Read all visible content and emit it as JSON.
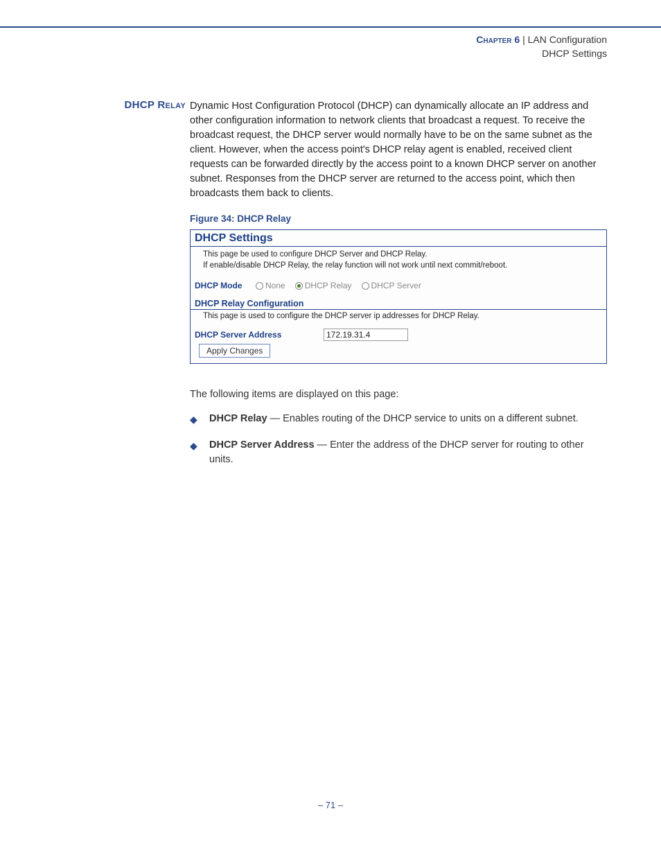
{
  "header": {
    "chapter_label": "Chapter 6",
    "separator": "|",
    "chapter_title": "LAN Configuration",
    "subtitle": "DHCP Settings"
  },
  "section": {
    "label": "DHCP Relay",
    "body": "Dynamic Host Configuration Protocol (DHCP) can dynamically allocate an IP address and other configuration information to network clients that broadcast a request. To receive the broadcast request, the DHCP server would normally have to be on the same subnet as the client. However, when the access point's DHCP relay agent is enabled, received client requests can be forwarded directly by the access point to a known DHCP server on another subnet. Responses from the DHCP server are returned to the access point, which then broadcasts them back to clients."
  },
  "figure": {
    "caption": "Figure 34:  DHCP Relay",
    "panel": {
      "title": "DHCP Settings",
      "desc_line1": "This page be used to configure DHCP Server and DHCP Relay.",
      "desc_line2": "If enable/disable DHCP Relay, the relay function will not work until next commit/reboot.",
      "mode_label": "DHCP Mode",
      "mode_options": {
        "none": "None",
        "relay": "DHCP Relay",
        "server": "DHCP Server",
        "selected": "relay"
      },
      "sub_heading": "DHCP Relay Configuration",
      "sub_desc": "This page is used to configure the DHCP server ip addresses for DHCP Relay.",
      "address_label": "DHCP Server Address",
      "address_value": "172.19.31.4",
      "apply_button": "Apply Changes"
    }
  },
  "post": {
    "intro": "The following items are displayed on this page:",
    "bullets": [
      {
        "term": "DHCP Relay",
        "desc": " — Enables routing of the DHCP service to units on a different subnet."
      },
      {
        "term": "DHCP Server Address",
        "desc": " — Enter the address of the DHCP server for routing to other units."
      }
    ]
  },
  "footer": {
    "page_number": "–  71  –"
  }
}
